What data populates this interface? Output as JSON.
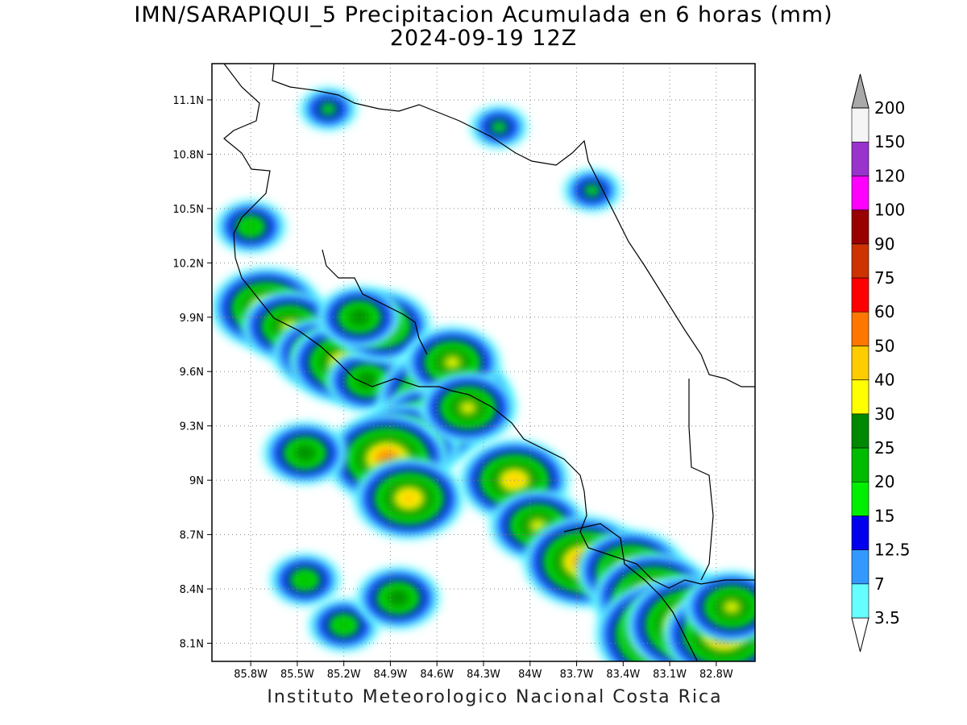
{
  "title_line1": "IMN/SARAPIQUI_5 Precipitacion Acumulada en 6 horas (mm)",
  "title_line2": "2024-09-19 12Z",
  "footer": "Instituto Meteorologico Nacional Costa Rica",
  "map": {
    "lon_range": [
      -86.05,
      -82.55
    ],
    "lat_range": [
      8.0,
      11.3
    ],
    "grid": true,
    "x_ticks": [
      "85.8W",
      "85.5W",
      "85.2W",
      "84.9W",
      "84.6W",
      "84.3W",
      "84W",
      "83.7W",
      "83.4W",
      "83.1W",
      "82.8W"
    ],
    "x_tick_values": [
      -85.8,
      -85.5,
      -85.2,
      -84.9,
      -84.6,
      -84.3,
      -84.0,
      -83.7,
      -83.4,
      -83.1,
      -82.8
    ],
    "y_ticks": [
      "8.1N",
      "8.4N",
      "8.7N",
      "9N",
      "9.3N",
      "9.6N",
      "9.9N",
      "10.2N",
      "10.5N",
      "10.8N",
      "11.1N"
    ],
    "y_tick_values": [
      8.1,
      8.4,
      8.7,
      9.0,
      9.3,
      9.6,
      9.9,
      10.2,
      10.5,
      10.8,
      11.1
    ]
  },
  "colorbar": {
    "levels": [
      "3.5",
      "7",
      "12.5",
      "15",
      "20",
      "25",
      "30",
      "40",
      "50",
      "60",
      "75",
      "90",
      "100",
      "120",
      "150",
      "200"
    ],
    "colors": [
      "#66ffff",
      "#3399ff",
      "#0000ee",
      "#00ee00",
      "#00bb00",
      "#008800",
      "#ffff00",
      "#ffcc00",
      "#ff7700",
      "#ff0000",
      "#cc3300",
      "#990000",
      "#ff00ff",
      "#9933cc",
      "#f5f5f5",
      "#a9a9a9"
    ]
  },
  "precip_cells": [
    {
      "lon": -85.7,
      "lat": 9.95,
      "level": 7
    },
    {
      "lon": -85.55,
      "lat": 9.85,
      "level": 6
    },
    {
      "lon": -85.35,
      "lat": 9.7,
      "level": 6
    },
    {
      "lon": -85.2,
      "lat": 9.65,
      "level": 7
    },
    {
      "lon": -85.05,
      "lat": 9.55,
      "level": 5
    },
    {
      "lon": -84.95,
      "lat": 9.85,
      "level": 6
    },
    {
      "lon": -85.1,
      "lat": 9.9,
      "level": 5
    },
    {
      "lon": -84.55,
      "lat": 9.45,
      "level": 9
    },
    {
      "lon": -84.65,
      "lat": 9.3,
      "level": 7
    },
    {
      "lon": -84.8,
      "lat": 9.2,
      "level": 7
    },
    {
      "lon": -84.92,
      "lat": 9.12,
      "level": 8
    },
    {
      "lon": -84.78,
      "lat": 8.9,
      "level": 7
    },
    {
      "lon": -84.5,
      "lat": 9.65,
      "level": 6
    },
    {
      "lon": -84.4,
      "lat": 9.4,
      "level": 6
    },
    {
      "lon": -84.1,
      "lat": 9.0,
      "level": 7
    },
    {
      "lon": -83.95,
      "lat": 8.75,
      "level": 6
    },
    {
      "lon": -83.65,
      "lat": 8.55,
      "level": 8
    },
    {
      "lon": -83.35,
      "lat": 8.5,
      "level": 7
    },
    {
      "lon": -83.2,
      "lat": 8.35,
      "level": 8
    },
    {
      "lon": -83.1,
      "lat": 8.15,
      "level": 10
    },
    {
      "lon": -82.95,
      "lat": 8.2,
      "level": 9
    },
    {
      "lon": -82.75,
      "lat": 8.15,
      "level": 8
    },
    {
      "lon": -82.7,
      "lat": 8.3,
      "level": 6
    },
    {
      "lon": -85.45,
      "lat": 8.45,
      "level": 4
    },
    {
      "lon": -85.2,
      "lat": 8.2,
      "level": 4
    },
    {
      "lon": -84.85,
      "lat": 8.35,
      "level": 5
    },
    {
      "lon": -85.45,
      "lat": 9.15,
      "level": 5
    },
    {
      "lon": -85.3,
      "lat": 11.05,
      "level": 3
    },
    {
      "lon": -84.2,
      "lat": 10.95,
      "level": 3
    },
    {
      "lon": -83.6,
      "lat": 10.6,
      "level": 3
    },
    {
      "lon": -85.8,
      "lat": 10.4,
      "level": 4
    }
  ]
}
